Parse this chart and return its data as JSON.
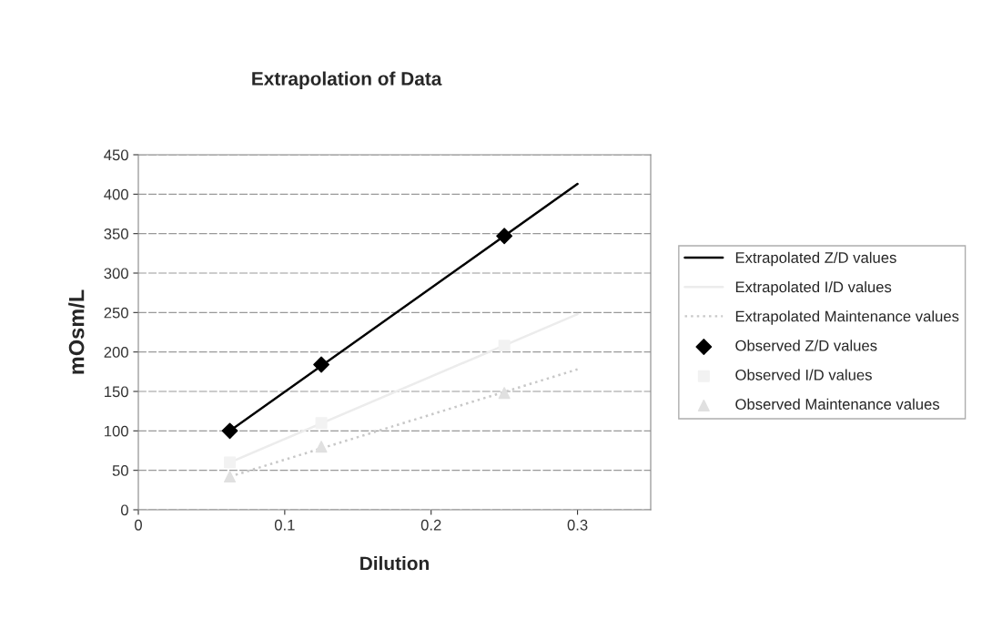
{
  "chart_data": {
    "type": "line",
    "title": "Extrapolation of Data",
    "xlabel": "Dilution",
    "ylabel": "mOsm/L",
    "xlim": [
      0,
      0.35
    ],
    "xticks": [
      0,
      0.1,
      0.2,
      0.3
    ],
    "ylim": [
      0,
      450
    ],
    "yticks": [
      0,
      50,
      100,
      150,
      200,
      250,
      300,
      350,
      400,
      450
    ],
    "grid": "y",
    "legend": "right",
    "series": [
      {
        "name": "Extrapolated Z/D values",
        "color": "#000000",
        "x": [
          0.0625,
          0.3
        ],
        "values": [
          100,
          413
        ],
        "marker": "none",
        "line_style": "solid"
      },
      {
        "name": "Extrapolated I/D values",
        "color": "#ececec",
        "x": [
          0.0625,
          0.3
        ],
        "values": [
          60,
          248
        ],
        "marker": "none",
        "line_style": "solid"
      },
      {
        "name": "Extrapolated Maintenance values",
        "color": "#c8c8c8",
        "x": [
          0.0625,
          0.3
        ],
        "values": [
          42,
          178
        ],
        "marker": "none",
        "line_style": "dotted"
      },
      {
        "name": "Observed Z/D values",
        "type": "scatter",
        "color": "#000000",
        "x": [
          0.0625,
          0.125,
          0.25
        ],
        "values": [
          100,
          184,
          347
        ],
        "marker": "diamond"
      },
      {
        "name": "Observed I/D values",
        "type": "scatter",
        "color": "#f2f2f2",
        "x": [
          0.0625,
          0.125,
          0.25
        ],
        "values": [
          60,
          110,
          208
        ],
        "marker": "square"
      },
      {
        "name": "Observed Maintenance values",
        "type": "scatter",
        "color": "#e0e0e0",
        "x": [
          0.0625,
          0.125,
          0.25
        ],
        "values": [
          42,
          80,
          148
        ],
        "marker": "triangle"
      }
    ]
  }
}
